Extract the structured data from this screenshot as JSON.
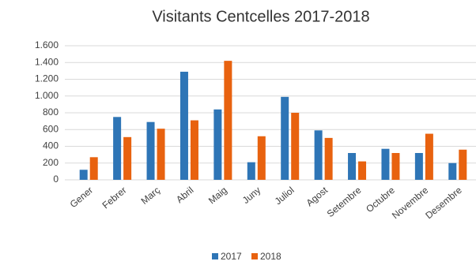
{
  "chart_data": {
    "type": "bar",
    "title": "Visitants Centcelles 2017-2018",
    "categories": [
      "Gener",
      "Febrer",
      "Març",
      "Abril",
      "Maig",
      "Juny",
      "Juliol",
      "Agost",
      "Setembre",
      "Octubre",
      "Novembre",
      "Desembre"
    ],
    "series": [
      {
        "name": "2017",
        "color": "#2e75b6",
        "values": [
          120,
          750,
          690,
          1290,
          840,
          210,
          990,
          590,
          320,
          370,
          320,
          200
        ]
      },
      {
        "name": "2018",
        "color": "#e8620f",
        "values": [
          270,
          510,
          610,
          710,
          1420,
          520,
          800,
          500,
          220,
          320,
          550,
          360
        ]
      }
    ],
    "ylim": [
      0,
      1600
    ],
    "yticks": [
      0,
      200,
      400,
      600,
      800,
      {
        "value": 1000,
        "label": "1.000"
      },
      {
        "value": 1200,
        "label": "1.200"
      },
      {
        "value": 1400,
        "label": "1.400"
      },
      {
        "value": 1600,
        "label": "1.600"
      }
    ],
    "grid": true,
    "legend": "bottom"
  }
}
